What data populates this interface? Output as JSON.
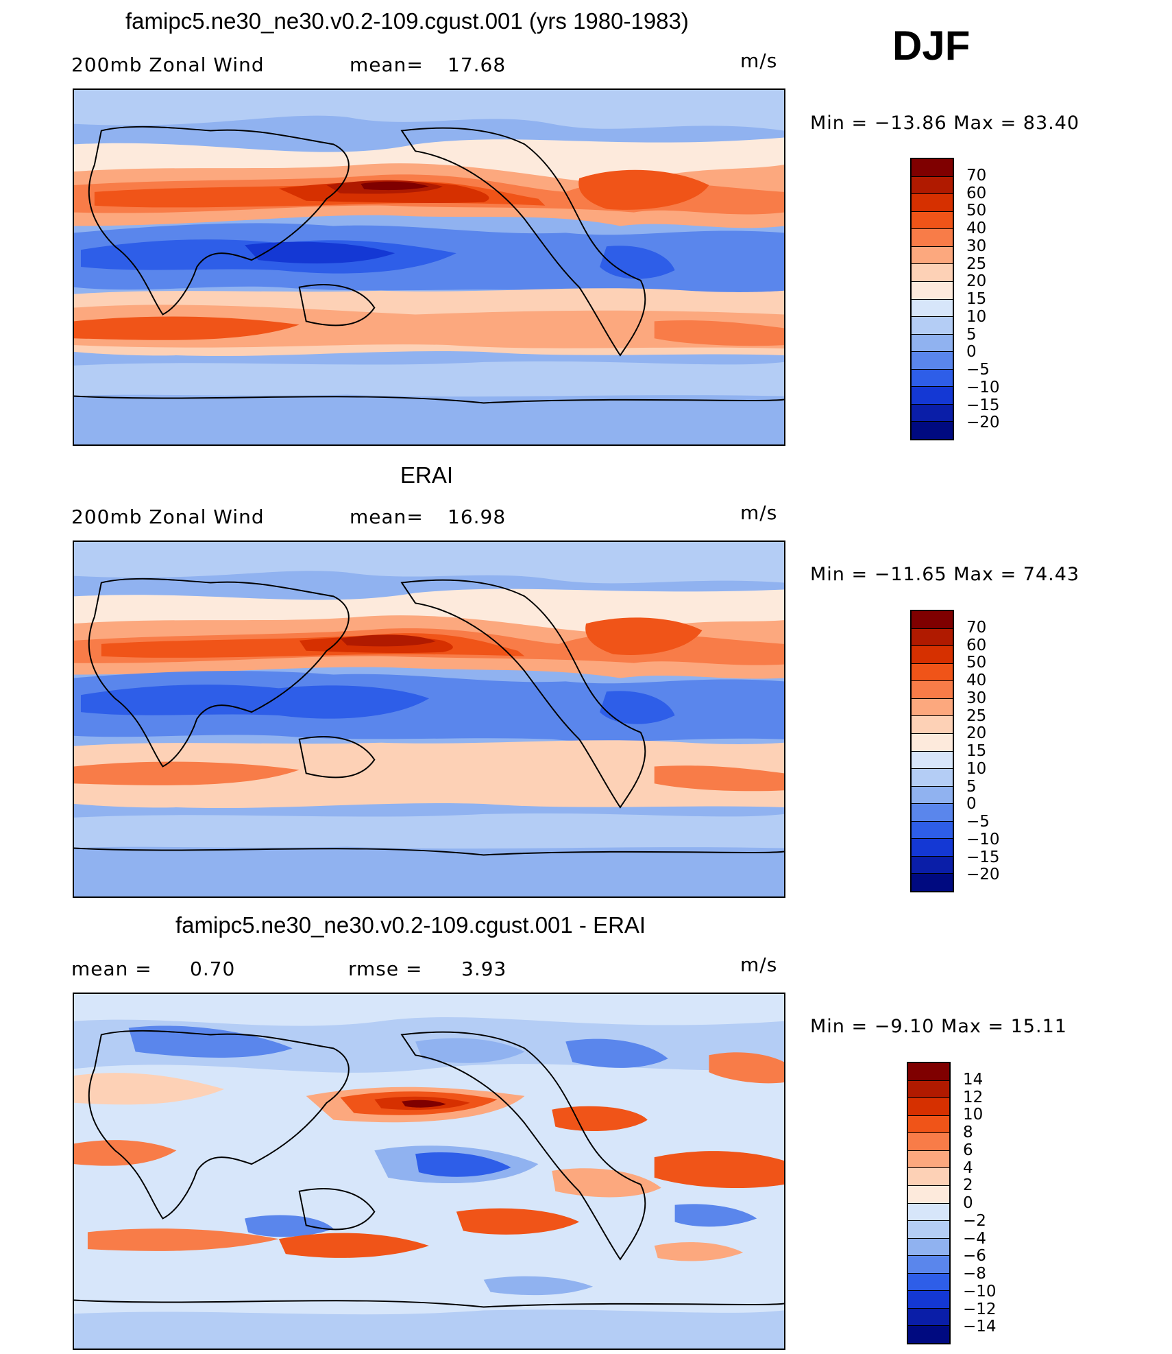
{
  "season": "DJF",
  "panels": [
    {
      "id": "model",
      "title": "famipc5.ne30_ne30.v0.2-109.cgust.001 (yrs 1980-1983)",
      "left_label": "200mb Zonal Wind",
      "stat_label": "mean=",
      "stat_value": "17.68",
      "stat2_label": "",
      "stat2_value": "",
      "units": "m/s",
      "min_max": "Min = −13.86 Max = 83.40",
      "colorbar_labels": [
        "70",
        "60",
        "50",
        "40",
        "30",
        "25",
        "20",
        "15",
        "10",
        "5",
        "0",
        "−5",
        "−10",
        "−15",
        "−20"
      ]
    },
    {
      "id": "obs",
      "title": "ERAI",
      "left_label": "200mb Zonal Wind",
      "stat_label": "mean=",
      "stat_value": "16.98",
      "stat2_label": "",
      "stat2_value": "",
      "units": "m/s",
      "min_max": "Min = −11.65 Max = 74.43",
      "colorbar_labels": [
        "70",
        "60",
        "50",
        "40",
        "30",
        "25",
        "20",
        "15",
        "10",
        "5",
        "0",
        "−5",
        "−10",
        "−15",
        "−20"
      ]
    },
    {
      "id": "diff",
      "title": "famipc5.ne30_ne30.v0.2-109.cgust.001 - ERAI",
      "left_label": "mean =",
      "stat_label": "",
      "stat_value": "0.70",
      "stat2_label": "rmse =",
      "stat2_value": "3.93",
      "units": "m/s",
      "min_max": "Min = −9.10 Max = 15.11",
      "colorbar_labels": [
        "14",
        "12",
        "10",
        "8",
        "6",
        "4",
        "2",
        "0",
        "−2",
        "−4",
        "−6",
        "−8",
        "−10",
        "−12",
        "−14"
      ]
    }
  ],
  "colors": {
    "colorbar_16": [
      "#7f0000",
      "#b01a00",
      "#d63000",
      "#f05418",
      "#f87c48",
      "#fca87e",
      "#fdd1b6",
      "#fdeadc",
      "#d7e6fa",
      "#b4cdf5",
      "#90b2f0",
      "#5a86ec",
      "#2e5ee8",
      "#1438d4",
      "#0a1ea8",
      "#000a80"
    ],
    "diff_colorbar_16": [
      "#7f0000",
      "#b01a00",
      "#d63000",
      "#f05418",
      "#f87c48",
      "#fca87e",
      "#fdd1b6",
      "#fdeadc",
      "#d7e6fa",
      "#b4cdf5",
      "#90b2f0",
      "#5a86ec",
      "#2e5ee8",
      "#1438d4",
      "#0a1ea8",
      "#000a80"
    ]
  }
}
